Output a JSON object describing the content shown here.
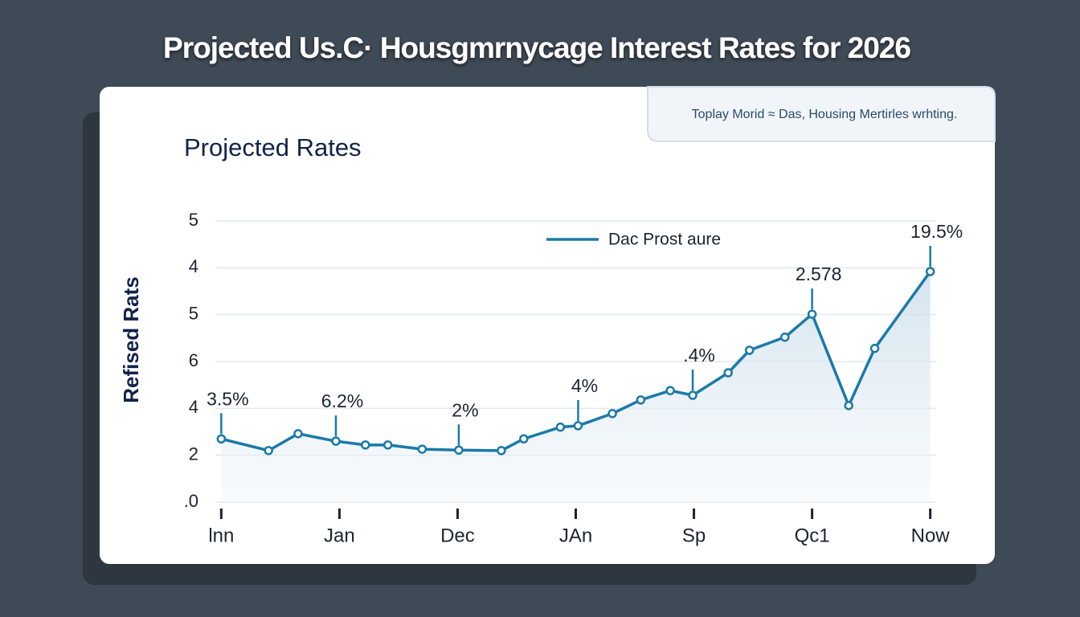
{
  "header": {
    "title": "Projected Us.C· Housgmrnycage Interest Rates for 2026"
  },
  "note": "Toplay Morid ≈ Das, Housing Mertirles wrhting.",
  "chart_data": {
    "type": "line",
    "title": "Projected Rates",
    "y_label": "Refised Rats",
    "xlim": [
      -0.05,
      6.05
    ],
    "xticks": [
      {
        "value": 0,
        "label": "lnn"
      },
      {
        "value": 1,
        "label": "Jan"
      },
      {
        "value": 2,
        "label": "Dec"
      },
      {
        "value": 3,
        "label": "JAn"
      },
      {
        "value": 4,
        "label": "Sp"
      },
      {
        "value": 5,
        "label": "Qc1"
      },
      {
        "value": 6,
        "label": "Now"
      }
    ],
    "ylim": [
      0,
      6
    ],
    "yticks": [
      {
        "value": 0,
        "label": ".0"
      },
      {
        "value": 1,
        "label": "2"
      },
      {
        "value": 2,
        "label": "4"
      },
      {
        "value": 3,
        "label": "6"
      },
      {
        "value": 4,
        "label": "5"
      },
      {
        "value": 5,
        "label": "4"
      },
      {
        "value": 6,
        "label": "5"
      }
    ],
    "grid": true,
    "series": [
      {
        "name": "Dac Prost aure",
        "color": "#1a7aa8",
        "x": [
          0,
          0.4,
          0.65,
          0.97,
          1.22,
          1.41,
          1.7,
          2.01,
          2.37,
          2.56,
          2.87,
          3.02,
          3.31,
          3.55,
          3.8,
          3.99,
          4.29,
          4.47,
          4.77,
          5.0,
          5.31,
          5.53,
          6.0
        ],
        "values": [
          1.35,
          1.1,
          1.46,
          1.3,
          1.22,
          1.22,
          1.13,
          1.11,
          1.1,
          1.35,
          1.6,
          1.63,
          1.89,
          2.18,
          2.38,
          2.28,
          2.76,
          3.24,
          3.52,
          4.01,
          2.06,
          3.28,
          4.92
        ]
      }
    ],
    "annotations": [
      {
        "text": "3.5%",
        "x": 0,
        "y": 1.35
      },
      {
        "text": "6.2%",
        "x": 0.97,
        "y": 1.3
      },
      {
        "text": "2%",
        "x": 2.01,
        "y": 1.11
      },
      {
        "text": "4%",
        "x": 3.02,
        "y": 1.63
      },
      {
        "text": ".4%",
        "x": 3.99,
        "y": 2.28
      },
      {
        "text": "2.578",
        "x": 5.0,
        "y": 4.01
      },
      {
        "text": "19.5%",
        "x": 6.0,
        "y": 4.92
      }
    ]
  }
}
